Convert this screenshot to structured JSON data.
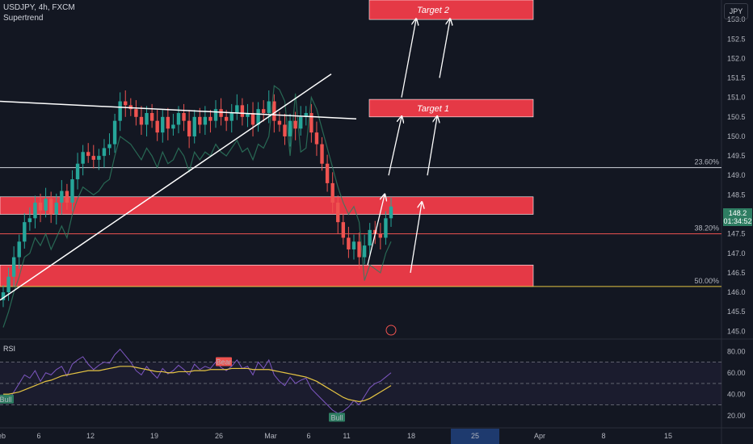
{
  "header": {
    "symbol_line": "USDJPY, 4h, FXCM",
    "indicator_line": "Supertrend"
  },
  "currency_button": "JPY",
  "rsi_pane_label": "RSI",
  "last_price": {
    "price": "148.2",
    "countdown": "01:34:52"
  },
  "colors": {
    "background": "#131722",
    "up_candle": "#26a69a",
    "down_candle": "#ef5350",
    "zone_red": "#e53946",
    "supertrend_green": "#1b5e3f",
    "supertrend_red": "#7a1f26",
    "rsi_line": "#7e57c2",
    "rsi_ma": "#e5c443"
  },
  "chart_data": [
    {
      "type": "candlestick",
      "name": "price",
      "y_axis": {
        "ylim": [
          144.8,
          153.5
        ],
        "ticks": [
          "153.0",
          "152.5",
          "152.0",
          "151.5",
          "151.0",
          "150.5",
          "150.0",
          "149.5",
          "149.0",
          "148.5",
          "148.0",
          "147.5",
          "147.0",
          "146.5",
          "146.0",
          "145.5",
          "145.0"
        ]
      },
      "x_axis": {
        "ticks": [
          "eb",
          "6",
          "12",
          "19",
          "26",
          "Mar",
          "6",
          "11",
          "18",
          "25",
          "Apr",
          "8",
          "15"
        ]
      },
      "series_close": [
        146.0,
        146.4,
        146.9,
        147.3,
        147.8,
        147.9,
        148.3,
        148.1,
        148.4,
        148.0,
        148.3,
        148.6,
        148.3,
        148.9,
        149.3,
        149.6,
        149.5,
        149.4,
        149.5,
        149.7,
        149.8,
        150.4,
        150.9,
        150.8,
        150.7,
        150.5,
        150.3,
        150.6,
        150.4,
        150.1,
        150.5,
        150.2,
        150.3,
        150.6,
        150.4,
        150.0,
        150.5,
        150.3,
        150.5,
        150.4,
        150.7,
        150.5,
        150.4,
        150.6,
        150.8,
        150.5,
        150.6,
        150.3,
        150.7,
        150.6,
        150.9,
        150.4,
        150.3,
        150.0,
        150.4,
        150.2,
        150.5,
        150.6,
        150.1,
        149.8,
        149.3,
        148.8,
        148.3,
        147.8,
        147.4,
        147.1,
        147.3,
        146.9,
        147.2,
        147.6,
        147.5,
        147.4,
        147.9,
        148.2
      ],
      "annotations": {
        "fib_levels": [
          {
            "label": "23.60%",
            "price": 149.2
          },
          {
            "label": "38.20%",
            "price": 147.5
          },
          {
            "label": "50.00%",
            "price": 146.15
          }
        ],
        "zones": [
          {
            "from": 148.0,
            "to": 148.45
          },
          {
            "from": 146.15,
            "to": 146.7
          }
        ],
        "targets": [
          {
            "label": "Target 1",
            "from": 150.5,
            "to": 150.95
          },
          {
            "label": "Target 2",
            "from": 153.0,
            "to": 153.5
          }
        ]
      }
    },
    {
      "type": "line",
      "name": "RSI",
      "ylim": [
        10,
        90
      ],
      "y_ticks": [
        "80.00",
        "60.00",
        "40.00",
        "20.00"
      ],
      "bands": [
        70,
        50,
        30
      ],
      "labels": [
        {
          "text": "Bear",
          "value": 70
        },
        {
          "text": "Bull",
          "value": 35
        },
        {
          "text": "Bull",
          "value": 18
        }
      ],
      "rsi": [
        38,
        35,
        42,
        50,
        58,
        55,
        62,
        52,
        60,
        58,
        63,
        66,
        57,
        68,
        72,
        75,
        68,
        63,
        67,
        70,
        69,
        77,
        82,
        76,
        70,
        62,
        58,
        66,
        60,
        55,
        64,
        59,
        62,
        67,
        63,
        58,
        68,
        63,
        66,
        64,
        70,
        65,
        62,
        66,
        72,
        64,
        66,
        58,
        70,
        64,
        72,
        58,
        52,
        48,
        56,
        50,
        53,
        55,
        45,
        40,
        35,
        30,
        25,
        22,
        24,
        28,
        34,
        30,
        38,
        46,
        50,
        52,
        56,
        60
      ],
      "rsi_ma": [
        40,
        40,
        41,
        42,
        44,
        46,
        48,
        50,
        52,
        53,
        55,
        57,
        58,
        59,
        60,
        61,
        62,
        62,
        62,
        63,
        64,
        65,
        66,
        66,
        66,
        65,
        64,
        63,
        62,
        61,
        61,
        60,
        60,
        61,
        61,
        61,
        62,
        62,
        62,
        63,
        63,
        63,
        63,
        64,
        64,
        64,
        64,
        63,
        63,
        63,
        63,
        62,
        61,
        60,
        59,
        58,
        57,
        56,
        54,
        52,
        49,
        46,
        43,
        40,
        37,
        35,
        34,
        33,
        34,
        36,
        39,
        42,
        45,
        48
      ]
    }
  ]
}
